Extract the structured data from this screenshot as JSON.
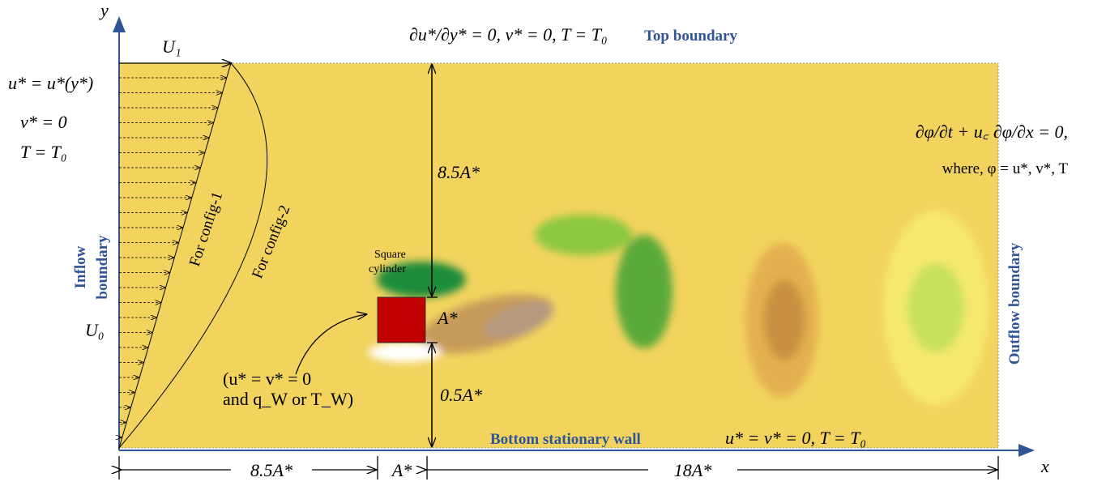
{
  "axes": {
    "x": "x",
    "y": "y"
  },
  "inflow": {
    "label": [
      "Inflow",
      "boundary"
    ],
    "u1": "U₁",
    "u0": "U₀",
    "conditions": [
      "u* = u*(y*)",
      "v* = 0",
      "T = T₀"
    ],
    "profiles": [
      "For config-1",
      "For config-2"
    ]
  },
  "top": {
    "label": "Top boundary",
    "condition": "∂u*/∂y* = 0, v* = 0, T = T₀"
  },
  "outflow": {
    "label": "Outflow boundary",
    "condition": [
      "∂φ/∂t + u꜀ ∂φ/∂x = 0,",
      "where,  φ = u*, v*, T"
    ]
  },
  "bottom": {
    "label": "Bottom stationary wall",
    "condition": "u* = v* = 0,  T = T₀"
  },
  "cylinder": {
    "label": [
      "Square",
      "cylinder"
    ],
    "size": "A*",
    "condition": [
      "(u* = v* = 0",
      "and q_W or T_W)"
    ]
  },
  "dimensions": {
    "gap_top": "8.5A*",
    "gap_bottom": "0.5A*",
    "upstream": "8.5A*",
    "cylinder": "A*",
    "downstream": "18A*"
  }
}
